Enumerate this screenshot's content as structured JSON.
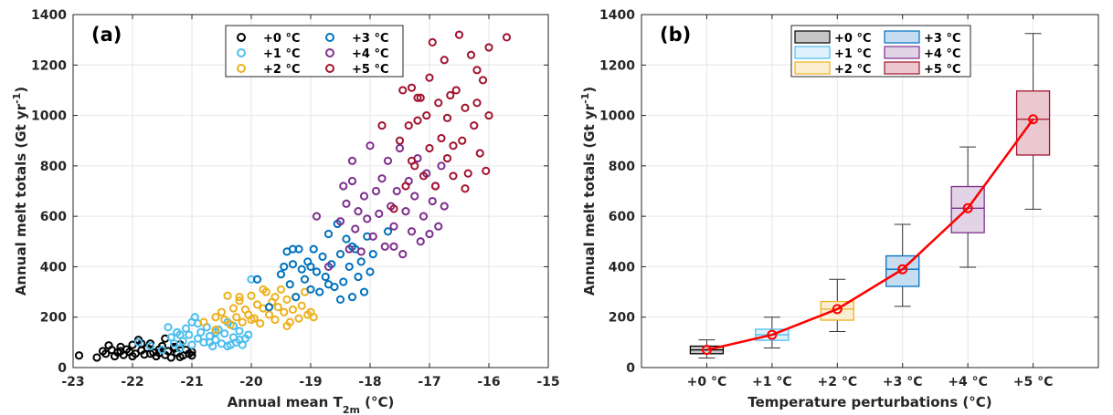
{
  "colors": {
    "+0 °C": "#000000",
    "+1 °C": "#4dbeee",
    "+2 °C": "#edb120",
    "+3 °C": "#0072bd",
    "+4 °C": "#7e2f8e",
    "+5 °C": "#a2142f",
    "median_line": "#ff0000",
    "box_fills": [
      "#c6c6c6",
      "#dff2fc",
      "#fbefd2",
      "#c6dcf0",
      "#e3d3e6",
      "#ebc8cf"
    ]
  },
  "chart_data": [
    {
      "type": "scatter",
      "panel_label": "(a)",
      "xlabel_main": "Annual mean T",
      "xlabel_sub": "2m",
      "xlabel_unit": " (°C)",
      "ylabel": "Annual melt totals (Gt yr",
      "ylabel_sup": "-1",
      "ylabel_end": ")",
      "xlim": [
        -23,
        -15
      ],
      "ylim": [
        0,
        1400
      ],
      "xticks": [
        -23,
        -22,
        -21,
        -20,
        -19,
        -18,
        -17,
        -16,
        -15
      ],
      "yticks": [
        0,
        200,
        400,
        600,
        800,
        1000,
        1200,
        1400
      ],
      "grid": true,
      "legend_position": "top-right",
      "series": [
        {
          "name": "+0 °C",
          "points": [
            [
              -22.9,
              48
            ],
            [
              -22.6,
              40
            ],
            [
              -22.5,
              65
            ],
            [
              -22.45,
              55
            ],
            [
              -22.4,
              88
            ],
            [
              -22.35,
              70
            ],
            [
              -22.3,
              45
            ],
            [
              -22.25,
              60
            ],
            [
              -22.2,
              82
            ],
            [
              -22.15,
              50
            ],
            [
              -22.1,
              72
            ],
            [
              -22.05,
              62
            ],
            [
              -22.0,
              90
            ],
            [
              -21.95,
              55
            ],
            [
              -21.9,
              110
            ],
            [
              -21.85,
              68
            ],
            [
              -21.8,
              52
            ],
            [
              -21.75,
              78
            ],
            [
              -21.7,
              95
            ],
            [
              -21.65,
              60
            ],
            [
              -21.6,
              45
            ],
            [
              -21.55,
              72
            ],
            [
              -21.5,
              85
            ],
            [
              -21.45,
              50
            ],
            [
              -21.4,
              65
            ],
            [
              -21.35,
              40
            ],
            [
              -21.3,
              75
            ],
            [
              -21.25,
              58
            ],
            [
              -21.2,
              92
            ],
            [
              -21.15,
              48
            ],
            [
              -21.1,
              70
            ],
            [
              -21.05,
              55
            ],
            [
              -21.0,
              62
            ],
            [
              -21.45,
              115
            ],
            [
              -21.7,
              55
            ],
            [
              -22.0,
              45
            ],
            [
              -21.2,
              42
            ],
            [
              -21.55,
              58
            ],
            [
              -22.2,
              65
            ],
            [
              -21.85,
              95
            ],
            [
              -21.3,
              82
            ],
            [
              -21.0,
              48
            ]
          ]
        },
        {
          "name": "+1 °C",
          "points": [
            [
              -21.9,
              100
            ],
            [
              -21.7,
              85
            ],
            [
              -21.5,
              70
            ],
            [
              -21.4,
              160
            ],
            [
              -21.35,
              120
            ],
            [
              -21.3,
              95
            ],
            [
              -21.25,
              140
            ],
            [
              -21.2,
              75
            ],
            [
              -21.15,
              105
            ],
            [
              -21.1,
              155
            ],
            [
              -21.05,
              130
            ],
            [
              -21.0,
              90
            ],
            [
              -20.95,
              200
            ],
            [
              -20.9,
              115
            ],
            [
              -20.85,
              140
            ],
            [
              -20.8,
              100
            ],
            [
              -20.75,
              160
            ],
            [
              -20.7,
              125
            ],
            [
              -20.65,
              85
            ],
            [
              -20.6,
              110
            ],
            [
              -20.55,
              150
            ],
            [
              -20.5,
              95
            ],
            [
              -20.45,
              135
            ],
            [
              -20.4,
              180
            ],
            [
              -20.35,
              90
            ],
            [
              -20.3,
              120
            ],
            [
              -20.25,
              100
            ],
            [
              -20.2,
              145
            ],
            [
              -20.15,
              90
            ],
            [
              -20.1,
              115
            ],
            [
              -20.05,
              130
            ],
            [
              -20.0,
              350
            ],
            [
              -20.3,
              165
            ],
            [
              -20.6,
              140
            ],
            [
              -20.9,
              175
            ],
            [
              -21.2,
              130
            ],
            [
              -20.4,
              85
            ],
            [
              -20.7,
              100
            ],
            [
              -21.0,
              180
            ],
            [
              -20.2,
              110
            ]
          ]
        },
        {
          "name": "+2 °C",
          "points": [
            [
              -20.8,
              180
            ],
            [
              -20.6,
              150
            ],
            [
              -20.5,
              220
            ],
            [
              -20.45,
              190
            ],
            [
              -20.4,
              285
            ],
            [
              -20.35,
              170
            ],
            [
              -20.3,
              235
            ],
            [
              -20.25,
              200
            ],
            [
              -20.2,
              265
            ],
            [
              -20.15,
              180
            ],
            [
              -20.1,
              230
            ],
            [
              -20.05,
              210
            ],
            [
              -20.0,
              285
            ],
            [
              -19.95,
              195
            ],
            [
              -19.9,
              250
            ],
            [
              -19.85,
              175
            ],
            [
              -19.8,
              235
            ],
            [
              -19.75,
              300
            ],
            [
              -19.7,
              210
            ],
            [
              -19.65,
              260
            ],
            [
              -19.6,
              190
            ],
            [
              -19.55,
              240
            ],
            [
              -19.5,
              310
            ],
            [
              -19.45,
              220
            ],
            [
              -19.4,
              270
            ],
            [
              -19.35,
              180
            ],
            [
              -19.3,
              230
            ],
            [
              -19.25,
              280
            ],
            [
              -19.2,
              195
            ],
            [
              -19.15,
              245
            ],
            [
              -19.1,
              300
            ],
            [
              -19.05,
              210
            ],
            [
              -19.0,
              220
            ],
            [
              -18.95,
              200
            ],
            [
              -19.4,
              165
            ],
            [
              -19.6,
              280
            ],
            [
              -19.8,
              310
            ],
            [
              -20.0,
              190
            ],
            [
              -20.2,
              280
            ],
            [
              -20.6,
              200
            ]
          ]
        },
        {
          "name": "+3 °C",
          "points": [
            [
              -19.9,
              350
            ],
            [
              -19.7,
              240
            ],
            [
              -19.5,
              370
            ],
            [
              -19.45,
              400
            ],
            [
              -19.4,
              460
            ],
            [
              -19.35,
              330
            ],
            [
              -19.3,
              410
            ],
            [
              -19.25,
              280
            ],
            [
              -19.2,
              470
            ],
            [
              -19.15,
              390
            ],
            [
              -19.1,
              350
            ],
            [
              -19.05,
              420
            ],
            [
              -19.0,
              310
            ],
            [
              -18.95,
              470
            ],
            [
              -18.9,
              380
            ],
            [
              -18.85,
              300
            ],
            [
              -18.8,
              440
            ],
            [
              -18.75,
              360
            ],
            [
              -18.7,
              530
            ],
            [
              -18.65,
              410
            ],
            [
              -18.6,
              320
            ],
            [
              -18.55,
              570
            ],
            [
              -18.5,
              450
            ],
            [
              -18.45,
              340
            ],
            [
              -18.4,
              510
            ],
            [
              -18.35,
              400
            ],
            [
              -18.3,
              280
            ],
            [
              -18.25,
              470
            ],
            [
              -18.2,
              360
            ],
            [
              -18.15,
              420
            ],
            [
              -18.1,
              300
            ],
            [
              -18.05,
              520
            ],
            [
              -18.0,
              380
            ],
            [
              -17.95,
              450
            ],
            [
              -18.3,
              480
            ],
            [
              -18.7,
              330
            ],
            [
              -19.0,
              400
            ],
            [
              -19.3,
              470
            ],
            [
              -18.5,
              270
            ],
            [
              -17.7,
              540
            ]
          ]
        },
        {
          "name": "+4 °C",
          "points": [
            [
              -18.9,
              600
            ],
            [
              -18.7,
              400
            ],
            [
              -18.5,
              580
            ],
            [
              -18.45,
              720
            ],
            [
              -18.4,
              650
            ],
            [
              -18.35,
              470
            ],
            [
              -18.3,
              740
            ],
            [
              -18.25,
              550
            ],
            [
              -18.2,
              620
            ],
            [
              -18.15,
              460
            ],
            [
              -18.1,
              680
            ],
            [
              -18.05,
              590
            ],
            [
              -18.0,
              880
            ],
            [
              -17.95,
              520
            ],
            [
              -17.9,
              700
            ],
            [
              -17.85,
              610
            ],
            [
              -17.8,
              750
            ],
            [
              -17.75,
              480
            ],
            [
              -17.7,
              820
            ],
            [
              -17.65,
              640
            ],
            [
              -17.6,
              560
            ],
            [
              -17.55,
              700
            ],
            [
              -17.5,
              870
            ],
            [
              -17.45,
              450
            ],
            [
              -17.4,
              620
            ],
            [
              -17.35,
              740
            ],
            [
              -17.3,
              540
            ],
            [
              -17.25,
              680
            ],
            [
              -17.2,
              830
            ],
            [
              -17.15,
              500
            ],
            [
              -17.1,
              600
            ],
            [
              -17.05,
              770
            ],
            [
              -17.0,
              530
            ],
            [
              -16.95,
              660
            ],
            [
              -16.9,
              720
            ],
            [
              -16.85,
              560
            ],
            [
              -16.8,
              800
            ],
            [
              -16.75,
              640
            ],
            [
              -17.6,
              480
            ],
            [
              -18.3,
              820
            ]
          ]
        },
        {
          "name": "+5 °C",
          "points": [
            [
              -17.8,
              960
            ],
            [
              -17.6,
              630
            ],
            [
              -17.5,
              900
            ],
            [
              -17.45,
              1100
            ],
            [
              -17.4,
              720
            ],
            [
              -17.35,
              960
            ],
            [
              -17.3,
              1110
            ],
            [
              -17.25,
              800
            ],
            [
              -17.2,
              980
            ],
            [
              -17.15,
              1070
            ],
            [
              -17.1,
              760
            ],
            [
              -17.05,
              1000
            ],
            [
              -17.0,
              870
            ],
            [
              -16.95,
              1290
            ],
            [
              -16.9,
              720
            ],
            [
              -16.85,
              1050
            ],
            [
              -16.8,
              910
            ],
            [
              -16.75,
              1220
            ],
            [
              -16.7,
              830
            ],
            [
              -16.65,
              1080
            ],
            [
              -16.6,
              760
            ],
            [
              -16.55,
              1100
            ],
            [
              -16.5,
              1320
            ],
            [
              -16.45,
              900
            ],
            [
              -16.4,
              1030
            ],
            [
              -16.35,
              770
            ],
            [
              -16.3,
              1240
            ],
            [
              -16.25,
              960
            ],
            [
              -16.2,
              1050
            ],
            [
              -16.15,
              850
            ],
            [
              -16.1,
              1140
            ],
            [
              -16.05,
              780
            ],
            [
              -16.0,
              1000
            ],
            [
              -15.7,
              1310
            ],
            [
              -16.4,
              710
            ],
            [
              -16.7,
              990
            ],
            [
              -17.0,
              1150
            ],
            [
              -17.3,
              820
            ],
            [
              -16.2,
              1180
            ],
            [
              -16.0,
              1270
            ],
            [
              -16.6,
              880
            ],
            [
              -17.2,
              1070
            ]
          ]
        }
      ]
    },
    {
      "type": "box",
      "panel_label": "(b)",
      "xlabel": "Temperature perturbations (°C)",
      "ylabel": "Annual melt totals (Gt yr",
      "ylabel_sup": "-1",
      "ylabel_end": ")",
      "ylim": [
        0,
        1400
      ],
      "yticks": [
        0,
        200,
        400,
        600,
        800,
        1000,
        1200,
        1400
      ],
      "grid": true,
      "legend_position": "top-right",
      "categories": [
        "+0 °C",
        "+1 °C",
        "+2 °C",
        "+3 °C",
        "+4 °C",
        "+5 °C"
      ],
      "boxes": [
        {
          "min": 38,
          "q1": 55,
          "median": 70,
          "q3": 85,
          "max": 110
        },
        {
          "min": 78,
          "q1": 108,
          "median": 130,
          "q3": 152,
          "max": 200
        },
        {
          "min": 143,
          "q1": 188,
          "median": 232,
          "q3": 262,
          "max": 350
        },
        {
          "min": 243,
          "q1": 322,
          "median": 390,
          "q3": 443,
          "max": 568
        },
        {
          "min": 398,
          "q1": 535,
          "median": 632,
          "q3": 718,
          "max": 875
        },
        {
          "min": 628,
          "q1": 843,
          "median": 985,
          "q3": 1097,
          "max": 1325
        }
      ],
      "median_line_values": [
        70,
        130,
        232,
        390,
        632,
        985
      ]
    }
  ]
}
